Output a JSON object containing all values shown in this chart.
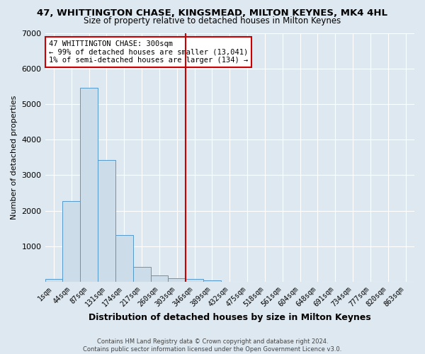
{
  "title": "47, WHITTINGTON CHASE, KINGSMEAD, MILTON KEYNES, MK4 4HL",
  "subtitle": "Size of property relative to detached houses in Milton Keynes",
  "xlabel": "Distribution of detached houses by size in Milton Keynes",
  "ylabel": "Number of detached properties",
  "bar_labels": [
    "1sqm",
    "44sqm",
    "87sqm",
    "131sqm",
    "174sqm",
    "217sqm",
    "260sqm",
    "303sqm",
    "346sqm",
    "389sqm",
    "432sqm",
    "475sqm",
    "518sqm",
    "561sqm",
    "604sqm",
    "648sqm",
    "691sqm",
    "734sqm",
    "777sqm",
    "820sqm",
    "863sqm"
  ],
  "bar_values": [
    80,
    2280,
    5450,
    3430,
    1310,
    430,
    185,
    100,
    80,
    50,
    0,
    0,
    0,
    0,
    0,
    0,
    0,
    0,
    0,
    0,
    0
  ],
  "bar_color": "#ccdce8",
  "bar_edge_color": "#5599cc",
  "vline_index": 7,
  "vline_color": "#cc0000",
  "annotation_title": "47 WHITTINGTON CHASE: 300sqm",
  "annotation_line2": "← 99% of detached houses are smaller (13,041)",
  "annotation_line3": "1% of semi-detached houses are larger (134) →",
  "annotation_box_color": "#ffffff",
  "annotation_box_edge": "#cc0000",
  "ylim": [
    0,
    7000
  ],
  "yticks": [
    0,
    1000,
    2000,
    3000,
    4000,
    5000,
    6000,
    7000
  ],
  "bg_color": "#dde8f0",
  "grid_color": "#ffffff",
  "footer_line1": "Contains HM Land Registry data © Crown copyright and database right 2024.",
  "footer_line2": "Contains public sector information licensed under the Open Government Licence v3.0."
}
